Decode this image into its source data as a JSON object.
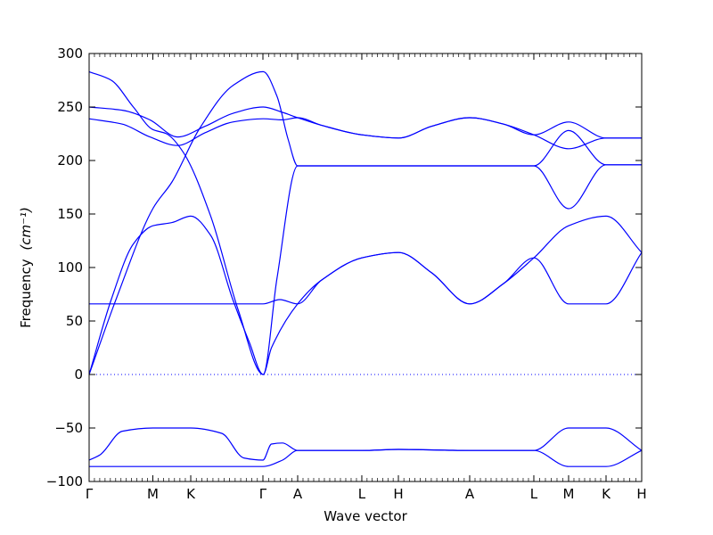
{
  "chart_data": {
    "type": "line",
    "title": "",
    "xlabel": "Wave vector",
    "ylabel": "Frequency",
    "ylabel_unit": "(cm⁻¹)",
    "ylim": [
      -100,
      300
    ],
    "yticks": [
      -100,
      -50,
      0,
      50,
      100,
      150,
      200,
      250,
      300
    ],
    "ytick_labels": [
      "−100",
      "−50",
      "0",
      "50",
      "100",
      "150",
      "200",
      "250",
      "300"
    ],
    "xlim": [
      0,
      1
    ],
    "xticks": [
      {
        "label": "Γ",
        "pos": 0.0
      },
      {
        "label": "M",
        "pos": 0.1153
      },
      {
        "label": "K",
        "pos": 0.1839
      },
      {
        "label": "Γ",
        "pos": 0.3145
      },
      {
        "label": "A",
        "pos": 0.3774
      },
      {
        "label": "L",
        "pos": 0.4935
      },
      {
        "label": "H",
        "pos": 0.5597
      },
      {
        "label": "A",
        "pos": 0.6887
      },
      {
        "label": "L",
        "pos": 0.8048
      },
      {
        "label": "M",
        "pos": 0.8677
      },
      {
        "label": "K",
        "pos": 0.9355
      },
      {
        "label": "H",
        "pos": 1.0
      }
    ],
    "zero_line": true,
    "grid": false,
    "legend": "none",
    "line_color": "#0000ff",
    "series": [
      {
        "x": [
          0,
          0.06,
          0.11,
          0.16,
          0.21,
          0.26,
          0.315,
          0.35,
          0.3774,
          0.42,
          0.4935,
          0.56,
          0.62,
          0.6887,
          0.75,
          0.8048,
          0.8677,
          0.9355,
          1.0
        ],
        "values": [
          250,
          247,
          238,
          222,
          232,
          244,
          250,
          245,
          240,
          233,
          224,
          221,
          232,
          240,
          234,
          224,
          236,
          221,
          221
        ]
      },
      {
        "x": [
          0,
          0.06,
          0.11,
          0.16,
          0.21,
          0.26,
          0.315,
          0.35,
          0.3774,
          0.42,
          0.4935,
          0.56,
          0.62,
          0.6887,
          0.75,
          0.8048,
          0.8677,
          0.9355,
          1.0
        ],
        "values": [
          239,
          234,
          222,
          214,
          226,
          236,
          239,
          238,
          240,
          233,
          224,
          221,
          232,
          240,
          234,
          224,
          211,
          221,
          221
        ]
      },
      {
        "x": [
          0,
          0.04,
          0.08,
          0.115,
          0.14,
          0.17,
          0.22,
          0.27,
          0.315,
          0.34,
          0.3774,
          0.42,
          0.4935,
          0.56,
          0.62,
          0.6887,
          0.75,
          0.8048,
          0.8677,
          0.9355,
          1.0
        ],
        "values": [
          283,
          275,
          250,
          229,
          225,
          208,
          148,
          60,
          0,
          90,
          195,
          195,
          195,
          195,
          195,
          195,
          195,
          195,
          228,
          196,
          196
        ]
      },
      {
        "x": [
          0,
          0.05,
          0.1153,
          0.15,
          0.2,
          0.26,
          0.315,
          0.34,
          0.36,
          0.3774,
          0.42,
          0.4935,
          0.56,
          0.62,
          0.6887,
          0.75,
          0.8048,
          0.8677,
          0.9355,
          1.0
        ],
        "values": [
          0,
          72,
          155,
          180,
          230,
          270,
          283,
          260,
          220,
          195,
          195,
          195,
          195,
          195,
          195,
          195,
          195,
          155,
          196,
          196
        ]
      },
      {
        "x": [
          0,
          0.04,
          0.08,
          0.1153,
          0.15,
          0.1839,
          0.22,
          0.26,
          0.29,
          0.315,
          0.33,
          0.3774,
          0.42,
          0.4935,
          0.56,
          0.62,
          0.6887,
          0.75,
          0.8048,
          0.8677,
          0.9355,
          1.0
        ],
        "values": [
          0,
          70,
          122,
          139,
          142,
          148,
          130,
          70,
          30,
          0,
          25,
          66,
          88,
          109,
          114,
          95,
          66,
          85,
          109,
          139,
          148,
          114
        ]
      },
      {
        "x": [
          0,
          0.05,
          0.1153,
          0.1839,
          0.25,
          0.3145,
          0.345,
          0.3774,
          0.42,
          0.4935,
          0.56,
          0.62,
          0.6887,
          0.75,
          0.8048,
          0.8677,
          0.9355,
          1.0
        ],
        "values": [
          66,
          66,
          66,
          66,
          66,
          66,
          70,
          66,
          88,
          109,
          114,
          95,
          66,
          85,
          109,
          66,
          66,
          114
        ]
      },
      {
        "x": [
          0,
          0.02,
          0.06,
          0.1153,
          0.1839,
          0.24,
          0.28,
          0.3145,
          0.33,
          0.35,
          0.3774,
          0.4935,
          0.56,
          0.6887,
          0.8048,
          0.8677,
          0.9355,
          1.0
        ],
        "values": [
          -80,
          -75,
          -53,
          -50,
          -50,
          -55,
          -78,
          -80,
          -65,
          -64,
          -71,
          -71,
          -70,
          -71,
          -71,
          -50,
          -50,
          -71
        ]
      },
      {
        "x": [
          0,
          0.1153,
          0.1839,
          0.25,
          0.3145,
          0.35,
          0.3774,
          0.4935,
          0.56,
          0.6887,
          0.8048,
          0.8677,
          0.9355,
          1.0
        ],
        "values": [
          -86,
          -86,
          -86,
          -86,
          -86,
          -80,
          -71,
          -71,
          -70,
          -71,
          -71,
          -86,
          -86,
          -71
        ]
      }
    ]
  }
}
